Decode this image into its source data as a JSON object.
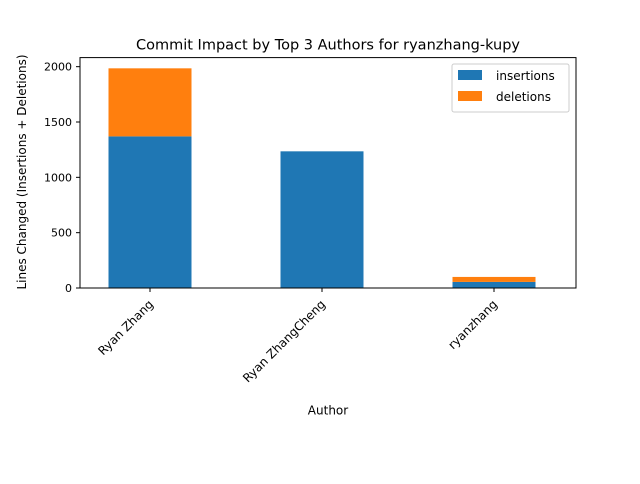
{
  "chart_data": {
    "type": "bar",
    "stacked": true,
    "title": "Commit Impact by Top 3 Authors for ryanzhang-kupy",
    "xlabel": "Author",
    "ylabel": "Lines Changed (Insertions + Deletions)",
    "categories": [
      "Ryan Zhang",
      "Ryan ZhangCheng",
      "ryanzhang"
    ],
    "series": [
      {
        "name": "insertions",
        "color": "#1f77b4",
        "values": [
          1370,
          1235,
          55
        ]
      },
      {
        "name": "deletions",
        "color": "#ff7f0e",
        "values": [
          615,
          0,
          45
        ]
      }
    ],
    "ylim": [
      0,
      2082
    ],
    "yticks": [
      0,
      500,
      1000,
      1500,
      2000
    ],
    "ytick_labels": [
      "0",
      "500",
      "1000",
      "1500",
      "2000"
    ],
    "legend_position": "top-right",
    "grid": false
  }
}
